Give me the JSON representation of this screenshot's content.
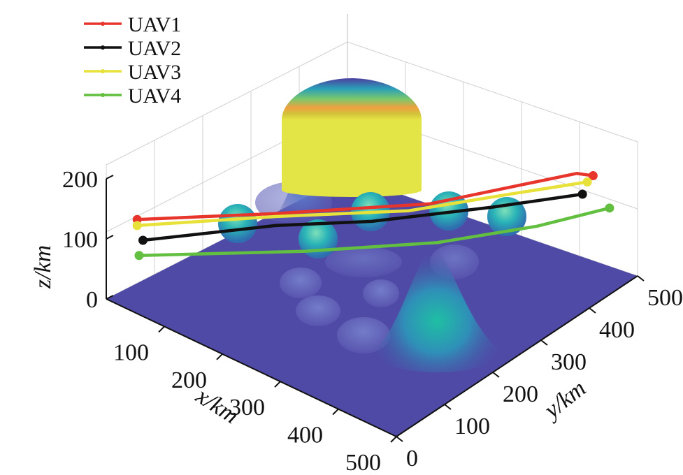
{
  "chart_data": {
    "type": "line3d",
    "title": "",
    "xlabel": "x/km",
    "ylabel": "y/km",
    "zlabel": "z/km",
    "xlim": [
      0,
      500
    ],
    "ylim": [
      0,
      500
    ],
    "zlim": [
      0,
      200
    ],
    "xticks": [
      "100",
      "200",
      "300",
      "400",
      "500"
    ],
    "yticks": [
      "0",
      "100",
      "200",
      "300",
      "400",
      "500"
    ],
    "zticks": [
      "0",
      "100",
      "200"
    ],
    "grid": true,
    "legend_position": "top-left",
    "series": [
      {
        "name": "UAV1",
        "color": "#e8352c",
        "points": [
          [
            20,
            40,
            120
          ],
          [
            150,
            170,
            120
          ],
          [
            300,
            310,
            130
          ],
          [
            420,
            470,
            150
          ],
          [
            440,
            480,
            150
          ]
        ]
      },
      {
        "name": "UAV2",
        "color": "#111111",
        "points": [
          [
            30,
            40,
            90
          ],
          [
            150,
            170,
            100
          ],
          [
            250,
            250,
            110
          ],
          [
            350,
            380,
            110
          ],
          [
            430,
            470,
            120
          ]
        ]
      },
      {
        "name": "UAV3",
        "color": "#e8e13a",
        "points": [
          [
            20,
            40,
            110
          ],
          [
            150,
            170,
            115
          ],
          [
            280,
            290,
            120
          ],
          [
            360,
            400,
            125
          ],
          [
            430,
            480,
            135
          ]
        ]
      },
      {
        "name": "UAV4",
        "color": "#62bf3f",
        "points": [
          [
            40,
            20,
            80
          ],
          [
            200,
            170,
            80
          ],
          [
            330,
            290,
            90
          ],
          [
            410,
            400,
            95
          ],
          [
            460,
            490,
            100
          ]
        ]
      }
    ]
  }
}
